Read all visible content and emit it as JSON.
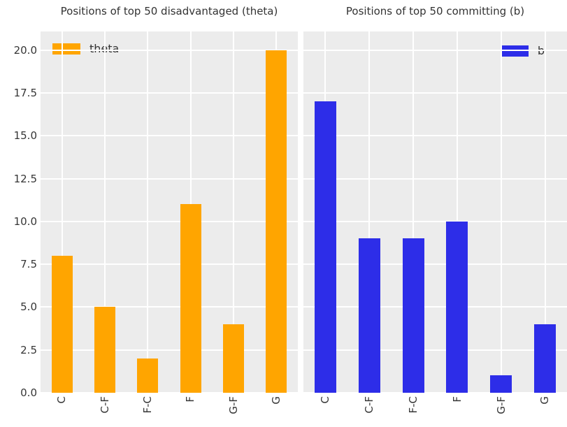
{
  "figure": {
    "background": "#ffffff",
    "plot_background": "#ececec",
    "grid_color": "#ffffff",
    "text_color": "#333333"
  },
  "chart_data": [
    {
      "type": "bar",
      "title": "Positions of top 50 disadvantaged (theta)",
      "categories": [
        "C",
        "C-F",
        "F-C",
        "F",
        "G-F",
        "G"
      ],
      "values": [
        8,
        5,
        2,
        11,
        4,
        20
      ],
      "series_name": "theta",
      "color": "#ffa500",
      "legend_position": "top-left",
      "ylim": [
        0,
        21.1
      ],
      "yticks": [
        0,
        2.5,
        5,
        7.5,
        10,
        12.5,
        15,
        17.5,
        20
      ],
      "ytick_labels": [
        "0.0",
        "2.5",
        "5.0",
        "7.5",
        "10.0",
        "12.5",
        "15.0",
        "17.5",
        "20.0"
      ],
      "show_ytick_labels": true,
      "grid": true
    },
    {
      "type": "bar",
      "title": "Positions of top 50 committing (b)",
      "categories": [
        "C",
        "C-F",
        "F-C",
        "F",
        "G-F",
        "G"
      ],
      "values": [
        17,
        9,
        9,
        10,
        1,
        4
      ],
      "series_name": "b",
      "color": "#2d2de8",
      "legend_position": "top-right",
      "ylim": [
        0,
        21.1
      ],
      "yticks": [
        0,
        2.5,
        5,
        7.5,
        10,
        12.5,
        15,
        17.5,
        20
      ],
      "ytick_labels": [
        "0.0",
        "2.5",
        "5.0",
        "7.5",
        "10.0",
        "12.5",
        "15.0",
        "17.5",
        "20.0"
      ],
      "show_ytick_labels": false,
      "grid": true
    }
  ]
}
